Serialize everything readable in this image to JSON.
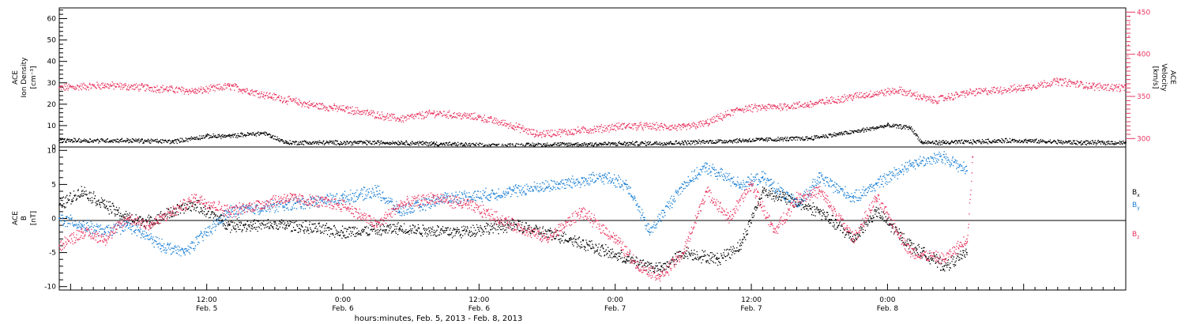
{
  "colors": {
    "black": "#000000",
    "pink": "#e8345f",
    "blue": "#1a7fd4"
  },
  "footer": {
    "xlabel": "hours:minutes, Feb.  5, 2013 - Feb.  8, 2013"
  },
  "chart_data": [
    {
      "type": "scatter",
      "xlim": [
        0,
        94
      ],
      "x_unit": "hours since 2013-02-04 23:00",
      "ylabel_left": [
        "ACE",
        "Ion Density",
        "[cm⁻³]"
      ],
      "ylabel_right": [
        "ACE",
        "Velocity",
        "[km/s]"
      ],
      "ylim_left": [
        0,
        65
      ],
      "ylim_right": [
        290,
        455
      ],
      "y_ticks_left": [
        0,
        10,
        20,
        30,
        40,
        50,
        60
      ],
      "y_ticks_right": [
        300,
        350,
        400,
        450
      ],
      "series": [
        {
          "axis": "left",
          "color": "#000000",
          "points": [
            [
              0,
              3
            ],
            [
              6,
              3
            ],
            [
              10,
              2.5
            ],
            [
              13,
              5
            ],
            [
              15,
              5
            ],
            [
              18,
              6.5
            ],
            [
              20,
              2
            ],
            [
              30,
              2
            ],
            [
              33,
              1.5
            ],
            [
              38,
              0.5
            ],
            [
              42,
              1
            ],
            [
              50,
              1.5
            ],
            [
              55,
              2
            ],
            [
              60,
              3
            ],
            [
              66,
              4
            ],
            [
              70,
              7
            ],
            [
              73,
              10
            ],
            [
              75,
              9
            ],
            [
              76,
              2
            ],
            [
              78,
              2
            ],
            [
              84,
              3
            ],
            [
              90,
              2
            ],
            [
              94,
              2
            ]
          ]
        },
        {
          "axis": "right",
          "color": "#e8345f",
          "points": [
            [
              0,
              360
            ],
            [
              4,
              363
            ],
            [
              8,
              360
            ],
            [
              12,
              356
            ],
            [
              15,
              362
            ],
            [
              18,
              352
            ],
            [
              22,
              340
            ],
            [
              26,
              333
            ],
            [
              30,
              323
            ],
            [
              33,
              330
            ],
            [
              37,
              325
            ],
            [
              40,
              315
            ],
            [
              42,
              305
            ],
            [
              45,
              308
            ],
            [
              50,
              315
            ],
            [
              55,
              313
            ],
            [
              57,
              318
            ],
            [
              60,
              335
            ],
            [
              66,
              340
            ],
            [
              70,
              350
            ],
            [
              74,
              357
            ],
            [
              77,
              345
            ],
            [
              80,
              354
            ],
            [
              85,
              360
            ],
            [
              88,
              368
            ],
            [
              91,
              362
            ],
            [
              94,
              360
            ],
            [
              94.3,
              445
            ]
          ]
        }
      ]
    },
    {
      "type": "scatter",
      "xlim": [
        0,
        94
      ],
      "ylabel_left": [
        "ACE",
        "B",
        "[nT]"
      ],
      "ylim": [
        -10.5,
        10.5
      ],
      "y_ticks": [
        -10,
        -5,
        0,
        5,
        10
      ],
      "x_tick_labels": [
        {
          "x": 13,
          "time": "12:00",
          "date": "Feb. 5"
        },
        {
          "x": 25,
          "time": "0:00",
          "date": "Feb. 6"
        },
        {
          "x": 37,
          "time": "12:00",
          "date": "Feb. 6"
        },
        {
          "x": 49,
          "time": "0:00",
          "date": "Feb. 7"
        },
        {
          "x": 61,
          "time": "12:00",
          "date": "Feb. 7"
        },
        {
          "x": 73,
          "time": "0:00",
          "date": "Feb. 8"
        }
      ],
      "series": [
        {
          "name_base": "B",
          "name_sub": "x",
          "color": "#000000",
          "points": [
            [
              0,
              2
            ],
            [
              2,
              4
            ],
            [
              4,
              2
            ],
            [
              6,
              0
            ],
            [
              8,
              -0.5
            ],
            [
              10,
              1
            ],
            [
              12,
              2
            ],
            [
              15,
              -1
            ],
            [
              20,
              -1
            ],
            [
              25,
              -2
            ],
            [
              30,
              -1.5
            ],
            [
              35,
              -2
            ],
            [
              40,
              -1
            ],
            [
              45,
              -3
            ],
            [
              50,
              -6
            ],
            [
              53,
              -7.5
            ],
            [
              55,
              -5
            ],
            [
              58,
              -6
            ],
            [
              60,
              -4
            ],
            [
              62,
              4
            ],
            [
              64,
              3
            ],
            [
              67,
              1
            ],
            [
              70,
              -3
            ],
            [
              72,
              1
            ],
            [
              75,
              -4
            ],
            [
              78,
              -7
            ],
            [
              80,
              -5
            ]
          ]
        },
        {
          "name_base": "B",
          "name_sub": "y",
          "color": "#1a7fd4",
          "points": [
            [
              0,
              0
            ],
            [
              2,
              -1
            ],
            [
              4,
              -2
            ],
            [
              6,
              -1
            ],
            [
              9,
              -4
            ],
            [
              11,
              -5
            ],
            [
              13,
              -2
            ],
            [
              15,
              1
            ],
            [
              20,
              2
            ],
            [
              25,
              3
            ],
            [
              28,
              4
            ],
            [
              30,
              1
            ],
            [
              34,
              3
            ],
            [
              38,
              3.5
            ],
            [
              40,
              4
            ],
            [
              44,
              5
            ],
            [
              48,
              6
            ],
            [
              50,
              5
            ],
            [
              52,
              -2
            ],
            [
              55,
              5
            ],
            [
              57,
              7.5
            ],
            [
              60,
              5
            ],
            [
              62,
              6
            ],
            [
              65,
              2
            ],
            [
              67,
              6
            ],
            [
              70,
              3
            ],
            [
              72,
              5
            ],
            [
              75,
              8
            ],
            [
              78,
              9
            ],
            [
              80,
              7
            ]
          ]
        },
        {
          "name_base": "B",
          "name_sub": "z",
          "color": "#e8345f",
          "points": [
            [
              0,
              -4
            ],
            [
              2,
              -2
            ],
            [
              4,
              -3
            ],
            [
              6,
              0
            ],
            [
              8,
              -1
            ],
            [
              10,
              1
            ],
            [
              12,
              3
            ],
            [
              15,
              1
            ],
            [
              20,
              3
            ],
            [
              25,
              2
            ],
            [
              28,
              -1
            ],
            [
              30,
              2
            ],
            [
              33,
              3
            ],
            [
              36,
              2
            ],
            [
              40,
              -1
            ],
            [
              43,
              -3
            ],
            [
              46,
              1
            ],
            [
              49,
              -3
            ],
            [
              51,
              -7
            ],
            [
              53,
              -8.5
            ],
            [
              55,
              -5
            ],
            [
              57,
              4
            ],
            [
              59,
              0
            ],
            [
              61,
              5
            ],
            [
              63,
              -2
            ],
            [
              65,
              3
            ],
            [
              67,
              4
            ],
            [
              70,
              -3
            ],
            [
              72,
              3
            ],
            [
              75,
              -5
            ],
            [
              78,
              -6
            ],
            [
              80,
              -3
            ],
            [
              80.5,
              9
            ]
          ]
        }
      ]
    }
  ]
}
